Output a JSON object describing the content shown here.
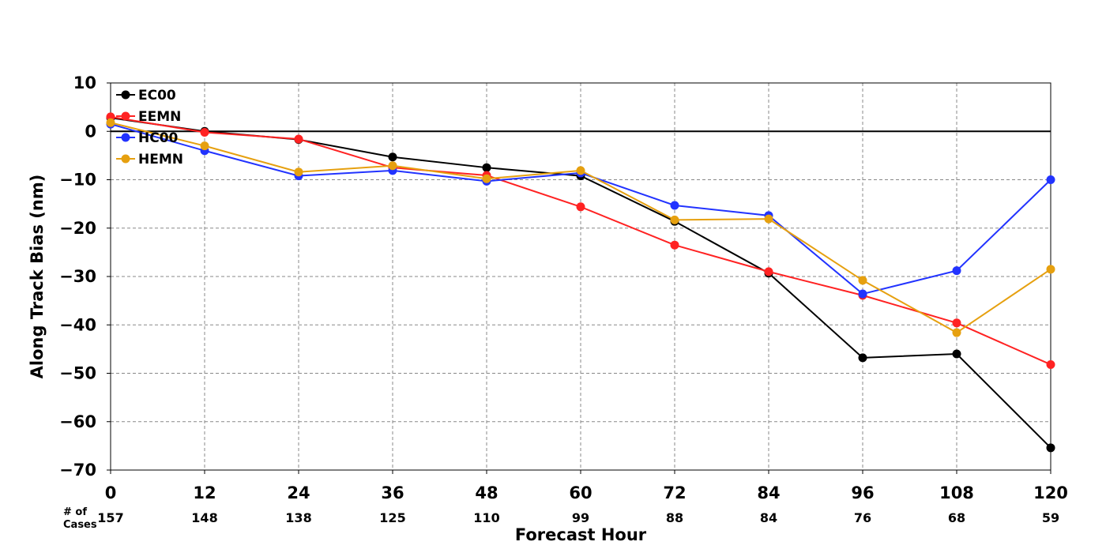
{
  "chart_data": {
    "type": "line",
    "xlabel": "Forecast Hour",
    "ylabel": "Along Track Bias (nm)",
    "x": [
      0,
      12,
      24,
      36,
      48,
      60,
      72,
      84,
      96,
      108,
      120
    ],
    "xlim": [
      0,
      120
    ],
    "ylim": [
      -70,
      10
    ],
    "yticks": [
      10,
      0,
      -10,
      -20,
      -30,
      -40,
      -50,
      -60,
      -70
    ],
    "ytick_labels": [
      "10",
      "0",
      "−10",
      "−20",
      "−30",
      "−40",
      "−50",
      "−60",
      "−70"
    ],
    "xtick_labels": [
      "0",
      "12",
      "24",
      "36",
      "48",
      "60",
      "72",
      "84",
      "96",
      "108",
      "120"
    ],
    "grid": true,
    "zero_line": true,
    "legend_position": "top-left",
    "cases_label_line1": "# of",
    "cases_label_line2": "Cases",
    "cases": [
      "157",
      "148",
      "138",
      "125",
      "110",
      "99",
      "88",
      "84",
      "76",
      "68",
      "59"
    ],
    "series": [
      {
        "name": "EC00",
        "color": "#000000",
        "values": [
          2.8,
          0.0,
          -1.7,
          -5.3,
          -7.5,
          -9.2,
          -18.6,
          -29.3,
          -46.8,
          -46.0,
          -65.4
        ]
      },
      {
        "name": "EEMN",
        "color": "#ff2222",
        "values": [
          3.0,
          -0.2,
          -1.6,
          -7.5,
          -9.1,
          -15.6,
          -23.5,
          -29.0,
          -33.9,
          -39.6,
          -48.2
        ]
      },
      {
        "name": "HC00",
        "color": "#2233ff",
        "values": [
          1.5,
          -4.0,
          -9.2,
          -8.1,
          -10.3,
          -8.6,
          -15.3,
          -17.4,
          -33.6,
          -28.8,
          -10.0
        ]
      },
      {
        "name": "HEMN",
        "color": "#e6a00f",
        "values": [
          1.8,
          -3.0,
          -8.4,
          -7.1,
          -9.8,
          -8.1,
          -18.3,
          -18.1,
          -30.8,
          -41.6,
          -28.5
        ]
      }
    ]
  }
}
